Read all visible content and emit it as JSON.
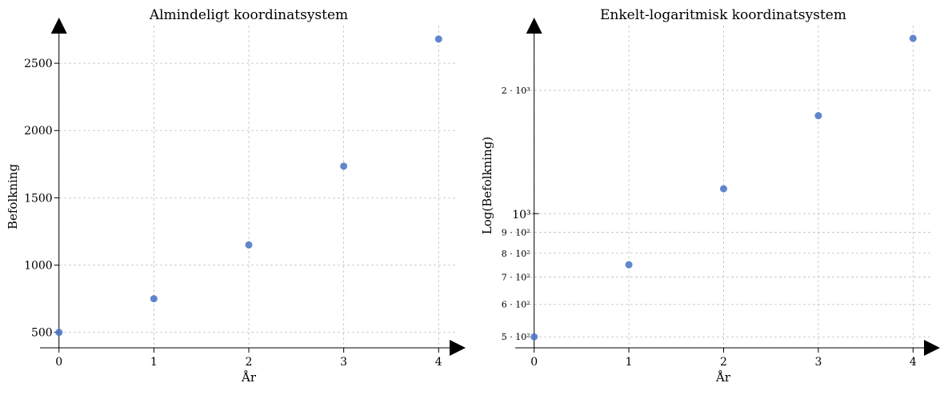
{
  "colors": {
    "points": "#4472c4",
    "grid": "#b0b0b0",
    "axis": "#000000"
  },
  "chart_data": [
    {
      "type": "scatter",
      "title": "Almindeligt koordinatsystem",
      "xlabel": "År",
      "ylabel": "Befolkning",
      "yscale": "linear",
      "grid": true,
      "xlim": [
        -0.2,
        4.2
      ],
      "ylim": [
        385,
        2780
      ],
      "xticks": [
        0,
        1,
        2,
        3,
        4
      ],
      "xticklabels": [
        "0",
        "1",
        "2",
        "3",
        "4"
      ],
      "yticks": [
        500,
        1000,
        1500,
        2000,
        2500
      ],
      "yticklabels": [
        "500",
        "1000",
        "1500",
        "2000",
        "2500"
      ],
      "x": [
        0,
        1,
        2,
        3,
        4
      ],
      "y": [
        500,
        750,
        1150,
        1735,
        2680
      ]
    },
    {
      "type": "scatter",
      "title": "Enkelt-logaritmisk koordinatsystem",
      "xlabel": "År",
      "ylabel": "Log(Befolkning)",
      "yscale": "log",
      "grid": true,
      "xlim": [
        -0.2,
        4.2
      ],
      "ylim": [
        470,
        2880
      ],
      "xticks": [
        0,
        1,
        2,
        3,
        4
      ],
      "xticklabels": [
        "0",
        "1",
        "2",
        "3",
        "4"
      ],
      "yticks_major": [
        1000
      ],
      "yticklabels_major": [
        "10³"
      ],
      "yticks_minor": [
        500,
        600,
        700,
        800,
        900,
        2000
      ],
      "yticklabels_minor": [
        "5 · 10²",
        "6 · 10²",
        "7 · 10²",
        "8 · 10²",
        "9 · 10²",
        "2 · 10³"
      ],
      "x": [
        0,
        1,
        2,
        3,
        4
      ],
      "y": [
        500,
        750,
        1150,
        1735,
        2680
      ]
    }
  ]
}
